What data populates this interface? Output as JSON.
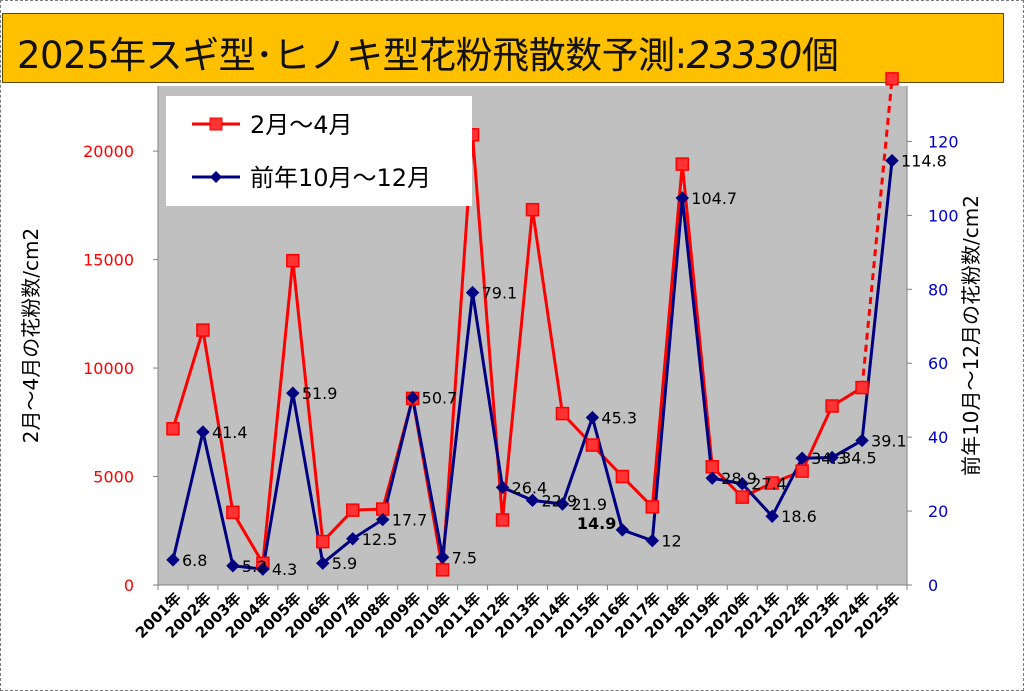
{
  "title": {
    "text": "2025年スギ型･ヒノキ型花粉飛散数予測:",
    "number": "23330",
    "suffix": "個"
  },
  "colors": {
    "title_bg": "#ffc000",
    "plot_bg": "#c0c0c0",
    "series_feb_apr": "#ff0000",
    "series_feb_apr_fill": "#ff3333",
    "series_prev_oct_dec": "#000080",
    "left_axis_text": "#ff0000",
    "right_axis_text": "#0000cc"
  },
  "chart_data": {
    "type": "line",
    "categories": [
      "2001年",
      "2002年",
      "2003年",
      "2004年",
      "2005年",
      "2006年",
      "2007年",
      "2008年",
      "2009年",
      "2010年",
      "2011年",
      "2012年",
      "2013年",
      "2014年",
      "2015年",
      "2016年",
      "2017年",
      "2018年",
      "2019年",
      "2020年",
      "2021年",
      "2022年",
      "2023年",
      "2024年",
      "2025年"
    ],
    "ylabel_left": "2月～4月の花粉数/cm2",
    "ylabel_right": "前年10月～12月の花粉数/cm2",
    "ylim_left": [
      0,
      23000
    ],
    "yticks_left": [
      "0",
      "5000",
      "10000",
      "15000",
      "20000"
    ],
    "ylim_right": [
      0,
      135
    ],
    "yticks_right": [
      "0",
      "20",
      "40",
      "60",
      "80",
      "100",
      "120"
    ],
    "legend_placement": "top-left",
    "grid": false,
    "series": [
      {
        "name": "2月～4月",
        "axis": "left",
        "marker": "square",
        "dashed_last_segment": true,
        "values": [
          7200,
          11750,
          3350,
          1000,
          14950,
          2000,
          3450,
          3500,
          8600,
          700,
          20750,
          3000,
          17300,
          7900,
          6450,
          5000,
          3600,
          19400,
          5450,
          4050,
          4700,
          5250,
          8250,
          9100,
          23330
        ]
      },
      {
        "name": "前年10月～12月",
        "axis": "right",
        "marker": "diamond",
        "values": [
          6.8,
          41.4,
          5.2,
          4.3,
          51.9,
          5.9,
          12.5,
          17.7,
          50.7,
          7.5,
          79.1,
          26.4,
          22.9,
          21.9,
          45.3,
          14.9,
          12,
          104.7,
          28.9,
          27.4,
          18.6,
          34.3,
          34.5,
          39.1,
          114.8
        ]
      }
    ],
    "data_labels": [
      "6.8",
      "41.4",
      "5.2",
      "4.3",
      "51.9",
      "5.9",
      "12.5",
      "17.7",
      "50.7",
      "7.5",
      "79.1",
      "26.4",
      "22.9",
      "21.9",
      "45.3",
      "14.9",
      "12",
      "104.7",
      "28.9",
      "27.4",
      "18.6",
      "34.3",
      "34.5",
      "39.1",
      "114.8"
    ],
    "bold_data_label_index": 15
  }
}
